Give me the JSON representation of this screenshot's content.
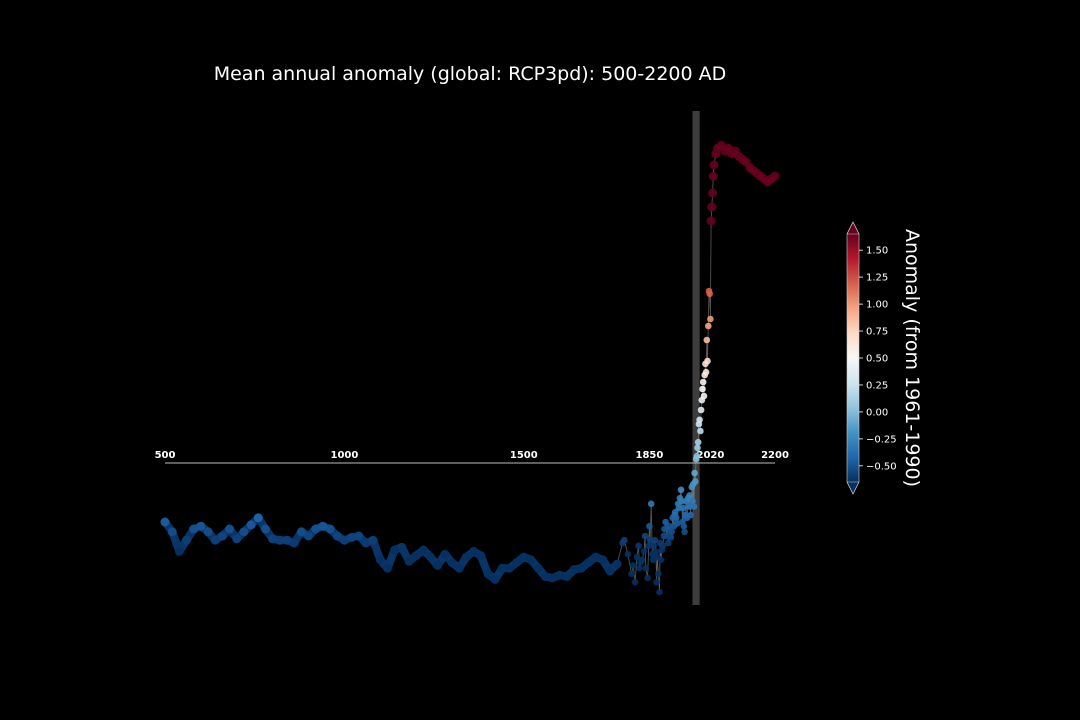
{
  "chart_data": {
    "type": "scatter",
    "title": "Mean annual anomaly (global: RCP3pd): 500-2200 AD",
    "xlabel": "",
    "ylabel": "",
    "xlim": [
      500,
      2200
    ],
    "ylim": [
      -0.9,
      2.35
    ],
    "grid": false,
    "x_ticks": [
      {
        "value": 500,
        "label": "500"
      },
      {
        "value": 1000,
        "label": "1000"
      },
      {
        "value": 1500,
        "label": "1500"
      },
      {
        "value": 1850,
        "label": "1850"
      },
      {
        "value": 2020,
        "label": "2020"
      },
      {
        "value": 2200,
        "label": "2200"
      }
    ],
    "highlight_band": [
      1970,
      1990
    ],
    "colorbar": {
      "label": "Anomaly (from 1961-1990)",
      "min": -0.65,
      "max": 1.65,
      "extend": "both",
      "cmap": "RdBu_r",
      "ticks": [
        {
          "value": -0.5,
          "label": "−0.50"
        },
        {
          "value": -0.25,
          "label": "−0.25"
        },
        {
          "value": 0.0,
          "label": "0.00"
        },
        {
          "value": 0.25,
          "label": "0.25"
        },
        {
          "value": 0.5,
          "label": "0.50"
        },
        {
          "value": 0.75,
          "label": "0.75"
        },
        {
          "value": 1.0,
          "label": "1.00"
        },
        {
          "value": 1.25,
          "label": "1.25"
        },
        {
          "value": 1.5,
          "label": "1.50"
        }
      ]
    },
    "series": [
      {
        "values": [
          [
            500,
            -0.45
          ],
          [
            520,
            -0.52
          ],
          [
            540,
            -0.66
          ],
          [
            560,
            -0.58
          ],
          [
            580,
            -0.5
          ],
          [
            600,
            -0.48
          ],
          [
            620,
            -0.52
          ],
          [
            640,
            -0.58
          ],
          [
            660,
            -0.55
          ],
          [
            680,
            -0.5
          ],
          [
            700,
            -0.57
          ],
          [
            720,
            -0.52
          ],
          [
            740,
            -0.47
          ],
          [
            760,
            -0.42
          ],
          [
            780,
            -0.5
          ],
          [
            800,
            -0.57
          ],
          [
            820,
            -0.58
          ],
          [
            840,
            -0.58
          ],
          [
            860,
            -0.6
          ],
          [
            880,
            -0.52
          ],
          [
            900,
            -0.55
          ],
          [
            920,
            -0.5
          ],
          [
            940,
            -0.48
          ],
          [
            960,
            -0.5
          ],
          [
            980,
            -0.55
          ],
          [
            1000,
            -0.58
          ],
          [
            1020,
            -0.56
          ],
          [
            1040,
            -0.55
          ],
          [
            1060,
            -0.6
          ],
          [
            1080,
            -0.58
          ],
          [
            1100,
            -0.72
          ],
          [
            1120,
            -0.78
          ],
          [
            1140,
            -0.65
          ],
          [
            1160,
            -0.63
          ],
          [
            1180,
            -0.73
          ],
          [
            1200,
            -0.69
          ],
          [
            1220,
            -0.65
          ],
          [
            1240,
            -0.7
          ],
          [
            1260,
            -0.76
          ],
          [
            1280,
            -0.68
          ],
          [
            1300,
            -0.74
          ],
          [
            1320,
            -0.78
          ],
          [
            1340,
            -0.7
          ],
          [
            1360,
            -0.66
          ],
          [
            1380,
            -0.69
          ],
          [
            1400,
            -0.82
          ],
          [
            1420,
            -0.86
          ],
          [
            1440,
            -0.78
          ],
          [
            1460,
            -0.78
          ],
          [
            1480,
            -0.74
          ],
          [
            1500,
            -0.7
          ],
          [
            1520,
            -0.72
          ],
          [
            1540,
            -0.78
          ],
          [
            1560,
            -0.84
          ],
          [
            1580,
            -0.85
          ],
          [
            1600,
            -0.83
          ],
          [
            1620,
            -0.84
          ],
          [
            1640,
            -0.79
          ],
          [
            1660,
            -0.78
          ],
          [
            1680,
            -0.74
          ],
          [
            1700,
            -0.7
          ],
          [
            1720,
            -0.72
          ],
          [
            1740,
            -0.8
          ],
          [
            1760,
            -0.75
          ],
          [
            1775,
            -0.6
          ],
          [
            1780,
            -0.58
          ],
          [
            1790,
            -0.68
          ],
          [
            1800,
            -0.82
          ],
          [
            1805,
            -0.76
          ],
          [
            1810,
            -0.88
          ],
          [
            1815,
            -0.7
          ],
          [
            1820,
            -0.62
          ],
          [
            1822,
            -0.78
          ],
          [
            1825,
            -0.74
          ],
          [
            1830,
            -0.72
          ],
          [
            1835,
            -0.66
          ],
          [
            1838,
            -0.55
          ],
          [
            1840,
            -0.78
          ],
          [
            1845,
            -0.85
          ],
          [
            1848,
            -0.62
          ],
          [
            1850,
            -0.48
          ],
          [
            1852,
            -0.58
          ],
          [
            1855,
            -0.32
          ],
          [
            1858,
            -0.68
          ],
          [
            1860,
            -0.72
          ],
          [
            1862,
            -0.62
          ],
          [
            1865,
            -0.58
          ],
          [
            1868,
            -0.66
          ],
          [
            1870,
            -0.88
          ],
          [
            1872,
            -0.7
          ],
          [
            1875,
            -0.82
          ],
          [
            1878,
            -0.95
          ],
          [
            1880,
            -0.6
          ],
          [
            1882,
            -0.72
          ],
          [
            1885,
            -0.65
          ],
          [
            1888,
            -0.62
          ],
          [
            1890,
            -0.55
          ],
          [
            1892,
            -0.5
          ],
          [
            1895,
            -0.45
          ],
          [
            1898,
            -0.55
          ],
          [
            1900,
            -0.5
          ],
          [
            1903,
            -0.6
          ],
          [
            1905,
            -0.48
          ],
          [
            1908,
            -0.55
          ],
          [
            1910,
            -0.56
          ],
          [
            1912,
            -0.52
          ],
          [
            1915,
            -0.42
          ],
          [
            1918,
            -0.48
          ],
          [
            1920,
            -0.4
          ],
          [
            1922,
            -0.38
          ],
          [
            1925,
            -0.42
          ],
          [
            1928,
            -0.46
          ],
          [
            1930,
            -0.32
          ],
          [
            1932,
            -0.35
          ],
          [
            1935,
            -0.28
          ],
          [
            1938,
            -0.22
          ],
          [
            1940,
            -0.3
          ],
          [
            1942,
            -0.45
          ],
          [
            1944,
            -0.35
          ],
          [
            1946,
            -0.48
          ],
          [
            1948,
            -0.52
          ],
          [
            1950,
            -0.4
          ],
          [
            1952,
            -0.3
          ],
          [
            1955,
            -0.42
          ],
          [
            1958,
            -0.28
          ],
          [
            1960,
            -0.34
          ],
          [
            1962,
            -0.26
          ],
          [
            1965,
            -0.4
          ],
          [
            1968,
            -0.2
          ],
          [
            1970,
            -0.3
          ],
          [
            1972,
            -0.18
          ],
          [
            1974,
            -0.34
          ],
          [
            1976,
            -0.1
          ],
          [
            1978,
            -0.16
          ],
          [
            1980,
            0.0
          ],
          [
            1982,
            0.02
          ],
          [
            1984,
            0.08
          ],
          [
            1986,
            0.12
          ],
          [
            1988,
            0.25
          ],
          [
            1990,
            0.28
          ],
          [
            1992,
            0.2
          ],
          [
            1994,
            0.35
          ],
          [
            1996,
            0.42
          ],
          [
            1998,
            0.5
          ],
          [
            2000,
            0.55
          ],
          [
            2002,
            0.45
          ],
          [
            2004,
            0.6
          ],
          [
            2006,
            0.68
          ],
          [
            2008,
            0.62
          ],
          [
            2010,
            0.85
          ],
          [
            2012,
            0.7
          ],
          [
            2014,
            0.95
          ],
          [
            2016,
            1.2
          ],
          [
            2018,
            1.18
          ],
          [
            2020,
            1.0
          ],
          [
            2022,
            1.7
          ],
          [
            2024,
            1.8
          ],
          [
            2026,
            1.9
          ],
          [
            2028,
            2.02
          ],
          [
            2030,
            2.1
          ],
          [
            2035,
            2.18
          ],
          [
            2040,
            2.22
          ],
          [
            2050,
            2.24
          ],
          [
            2060,
            2.2
          ],
          [
            2070,
            2.22
          ],
          [
            2080,
            2.18
          ],
          [
            2090,
            2.2
          ],
          [
            2100,
            2.16
          ],
          [
            2110,
            2.14
          ],
          [
            2120,
            2.12
          ],
          [
            2130,
            2.08
          ],
          [
            2140,
            2.06
          ],
          [
            2150,
            2.04
          ],
          [
            2160,
            2.02
          ],
          [
            2170,
            2.0
          ],
          [
            2180,
            1.98
          ],
          [
            2190,
            2.0
          ],
          [
            2200,
            2.02
          ]
        ]
      }
    ]
  }
}
